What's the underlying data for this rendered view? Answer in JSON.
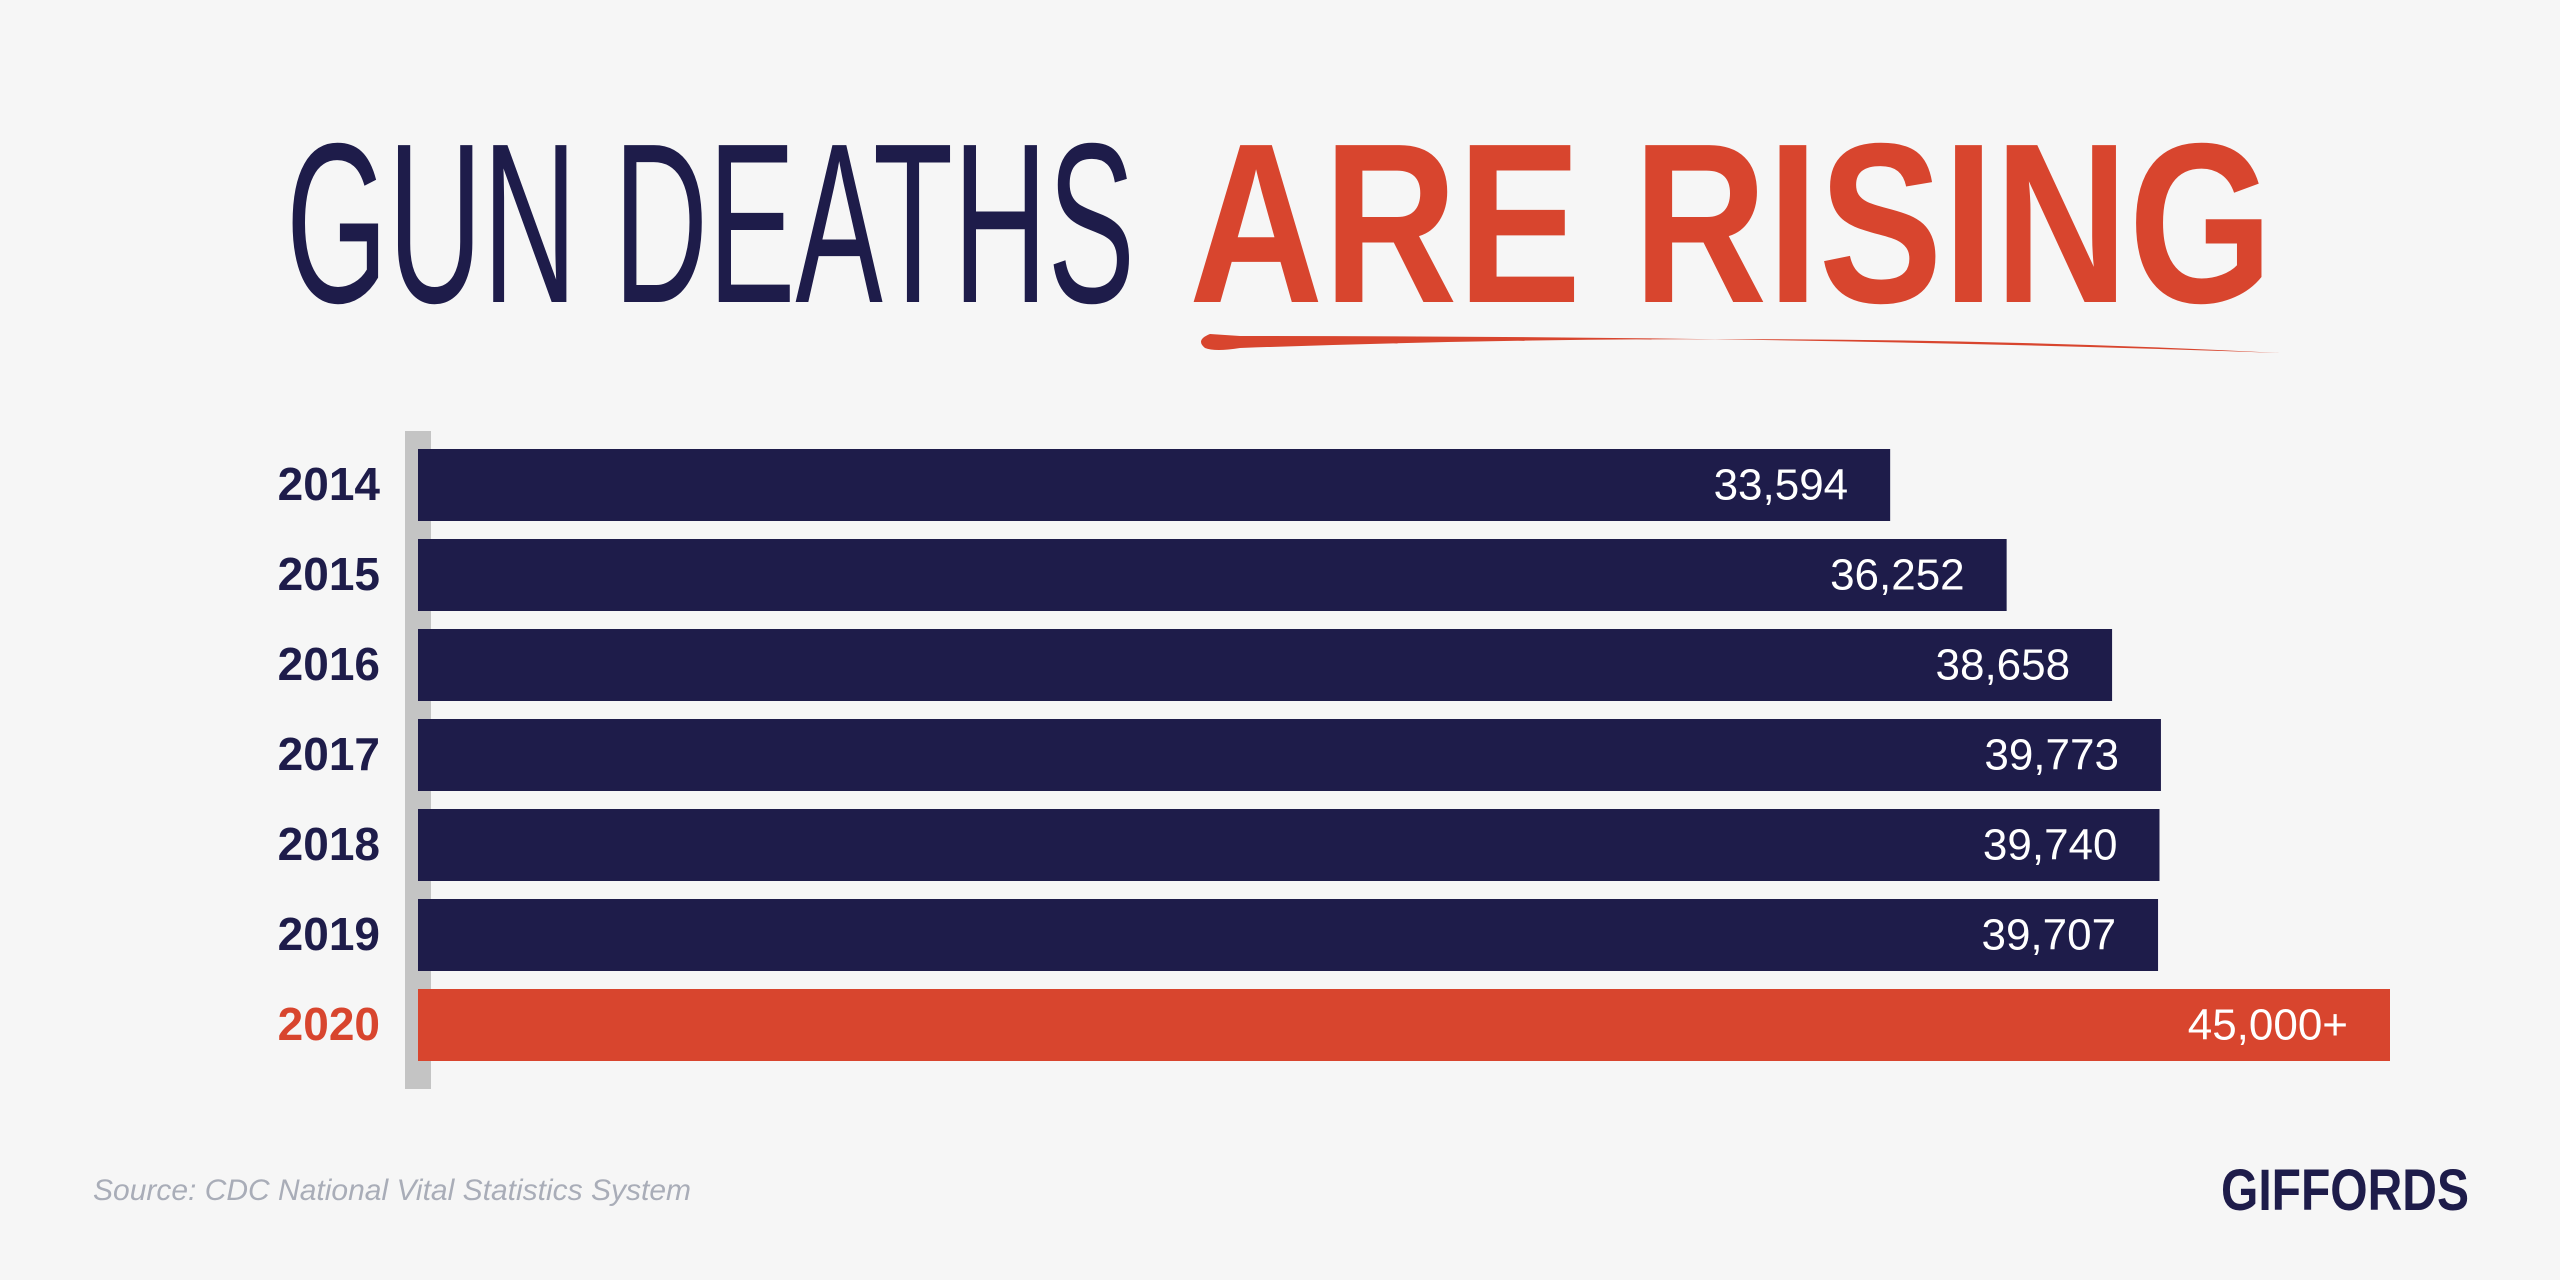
{
  "chart_data": {
    "type": "bar",
    "orientation": "horizontal",
    "title": "GUN DEATHS",
    "title_highlight": "ARE RISING",
    "categories": [
      "2014",
      "2015",
      "2016",
      "2017",
      "2018",
      "2019",
      "2020"
    ],
    "values": [
      33594,
      36252,
      38658,
      39773,
      39740,
      39707,
      45000
    ],
    "value_labels": [
      "33,594",
      "36,252",
      "38,658",
      "39,773",
      "39,740",
      "39,707",
      "45,000+"
    ],
    "colors": [
      "#1e1c4a",
      "#1e1c4a",
      "#1e1c4a",
      "#1e1c4a",
      "#1e1c4a",
      "#1e1c4a",
      "#d8452e"
    ],
    "source": "Source: CDC National Vital Statistics System",
    "logo": "GIFFORDS"
  }
}
